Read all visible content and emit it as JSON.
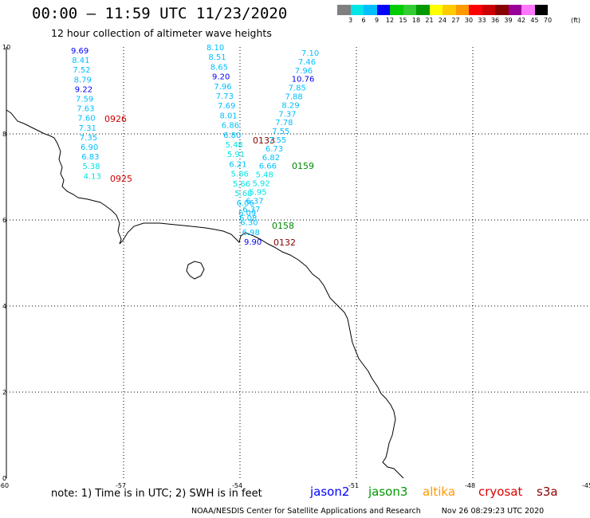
{
  "title": "00:00 – 11:59 UTC 11/23/2020",
  "subtitle": "12 hour collection of altimeter wave heights",
  "legend": {
    "colors": [
      "#7f7f7f",
      "#00e5e5",
      "#00bfff",
      "#0000ff",
      "#00cc00",
      "#32cd32",
      "#009900",
      "#ffff00",
      "#ffcc00",
      "#ff9900",
      "#ff0000",
      "#cc0000",
      "#880000",
      "#990099",
      "#ff77ff",
      "#000000"
    ],
    "labels": [
      "3",
      "6",
      "9",
      "12",
      "15",
      "18",
      "21",
      "24",
      "27",
      "30",
      "33",
      "36",
      "39",
      "42",
      "45",
      "70"
    ],
    "unit": "(ft)"
  },
  "axes": {
    "x_ticks": [
      "-60",
      "-57",
      "-54",
      "-51",
      "-48",
      "-45"
    ],
    "y_ticks": [
      "10",
      "8",
      "6",
      "4",
      "2",
      "0"
    ]
  },
  "tracks": [
    {
      "satellite": "cryosat",
      "color": "#cc0000",
      "time": "0926",
      "values": [
        "9.69",
        "8.41",
        "7.52",
        "8.79",
        "9.22",
        "7.59",
        "7.63",
        "7.60",
        "7.31",
        "7.35",
        "6.90",
        "6.83",
        "5.38",
        "4.13"
      ]
    },
    {
      "satellite": "cryosat",
      "color": "#cc0000",
      "time": "0925"
    },
    {
      "satellite": "s3a",
      "color": "#880000",
      "time": "0133",
      "values": [
        "8.10",
        "8.51",
        "8.65",
        "9.20",
        "7.96",
        "7.73",
        "7.69",
        "8.01",
        "6.86",
        "6.80",
        "5.48",
        "5.91",
        "6.21",
        "5.86",
        "5.66",
        "5.68",
        "6.06",
        "6.09",
        "6.30",
        "6.98",
        "9.90"
      ]
    },
    {
      "satellite": "s3a",
      "color": "#880000",
      "time": "0132"
    },
    {
      "satellite": "jason3",
      "color": "#008800",
      "time": "0159",
      "values": [
        "7.10",
        "7.46",
        "7.96",
        "10.76",
        "7.85",
        "7.88",
        "8.29",
        "7.37",
        "7.78",
        "7.55",
        "7.55",
        "6.73",
        "6.82",
        "6.66",
        "5.48",
        "5.92",
        "5.95",
        "6.37",
        "6.37",
        "6.08"
      ]
    },
    {
      "satellite": "jason3",
      "color": "#008800",
      "time": "0158"
    }
  ],
  "footer": {
    "note": "note: 1) Time is in UTC; 2) SWH is in feet",
    "satellites": [
      {
        "name": "jason2",
        "color": "#0000ff"
      },
      {
        "name": "jason3",
        "color": "#009900"
      },
      {
        "name": "altika",
        "color": "#ff9900"
      },
      {
        "name": "cryosat",
        "color": "#dd0000"
      },
      {
        "name": "s3a",
        "color": "#880000"
      }
    ],
    "credit": "NOAA/NESDIS Center for Satellite Applications and Research",
    "timestamp": "Nov 26 08:29:23 UTC 2020"
  }
}
